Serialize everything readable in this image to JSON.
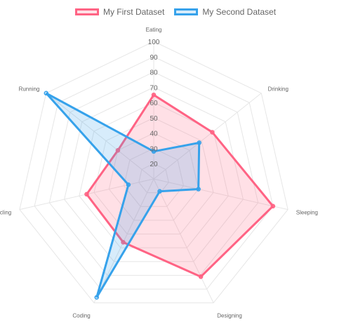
{
  "chart_data": {
    "type": "radar",
    "categories": [
      "Eating",
      "Drinking",
      "Sleeping",
      "Designing",
      "Coding",
      "Cycling",
      "Running"
    ],
    "series": [
      {
        "name": "My First Dataset",
        "values": [
          65,
          59,
          90,
          81,
          56,
          55,
          40
        ],
        "stroke": "#ff6384",
        "fill": "rgba(255,99,132,0.2)"
      },
      {
        "name": "My Second Dataset",
        "values": [
          28,
          48,
          40,
          19,
          96,
          27,
          100
        ],
        "stroke": "#36a2eb",
        "fill": "rgba(54,162,235,0.2)"
      }
    ],
    "r_ticks": [
      "20",
      "30",
      "40",
      "50",
      "60",
      "70",
      "80",
      "90",
      "100"
    ],
    "r_range": [
      10,
      100
    ],
    "grid": true,
    "legend_position": "top"
  }
}
